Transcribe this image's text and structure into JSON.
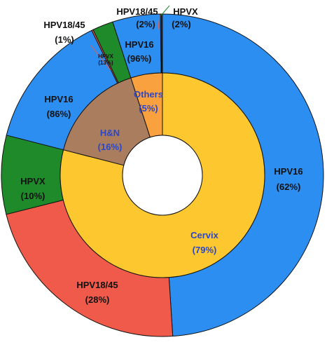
{
  "chart_data": {
    "type": "pie",
    "inner_ring": [
      {
        "label": "Cervix",
        "pct_label": "(79%)",
        "value": 79,
        "color": "#fdc82f"
      },
      {
        "label": "H&N",
        "pct_label": "(16%)",
        "value": 16,
        "color": "#a97d5d"
      },
      {
        "label": "Others",
        "pct_label": "(5%)",
        "value": 5,
        "color": "#f9a03f"
      }
    ],
    "outer_ring": [
      {
        "parent": "Cervix",
        "label": "HPV16",
        "pct_label": "(62%)",
        "value": 62,
        "color": "#2c8ef0"
      },
      {
        "parent": "Cervix",
        "label": "HPV18/45",
        "pct_label": "(28%)",
        "value": 28,
        "color": "#f05a4a"
      },
      {
        "parent": "Cervix",
        "label": "HPVX",
        "pct_label": "(10%)",
        "value": 10,
        "color": "#1f8a2a"
      },
      {
        "parent": "H&N",
        "label": "HPV16",
        "pct_label": "(86%)",
        "value": 86,
        "color": "#2c8ef0"
      },
      {
        "parent": "H&N",
        "label": "HPV18/45",
        "pct_label": "(1%)",
        "value": 1,
        "color": "#f05a4a"
      },
      {
        "parent": "H&N",
        "label": "HPVX",
        "pct_label": "(13%)",
        "value": 13,
        "color": "#1f8a2a"
      },
      {
        "parent": "Others",
        "label": "HPV16",
        "pct_label": "(96%)",
        "value": 96,
        "color": "#2c8ef0"
      },
      {
        "parent": "Others",
        "label": "HPV18/45",
        "pct_label": "(2%)",
        "value": 2,
        "color": "#f05a4a"
      },
      {
        "parent": "Others",
        "label": "HPVX",
        "pct_label": "(2%)",
        "value": 2,
        "color": "#1f8a2a"
      }
    ],
    "start_angle_deg": 0,
    "direction": "clockwise"
  }
}
